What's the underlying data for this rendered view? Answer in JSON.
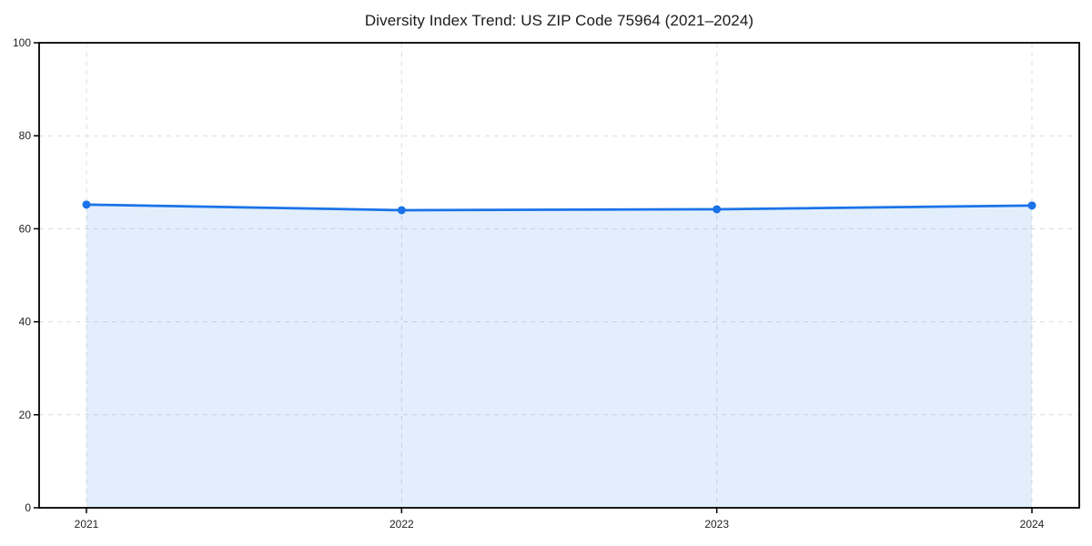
{
  "chart_data": {
    "type": "area",
    "title": "Diversity Index Trend: US ZIP Code 75964 (2021–2024)",
    "x": [
      "2021",
      "2022",
      "2023",
      "2024"
    ],
    "series": [
      {
        "name": "Diversity Index",
        "values": [
          65.2,
          64.0,
          64.2,
          65.0
        ]
      }
    ],
    "xlabel": "",
    "ylabel": "",
    "ylim": [
      0,
      100
    ],
    "yticks": [
      0,
      20,
      40,
      60,
      80,
      100
    ],
    "grid": "dashed",
    "legend_position": "none",
    "line_color": "#1a73e8",
    "marker_color": "#1a73e8",
    "fill_color": "rgba(26,115,232,0.12)",
    "grid_color": "#dcdcdc",
    "axis_color": "#000000",
    "tick_label_color": "#1f1f1f",
    "background_color": "#ffffff"
  }
}
